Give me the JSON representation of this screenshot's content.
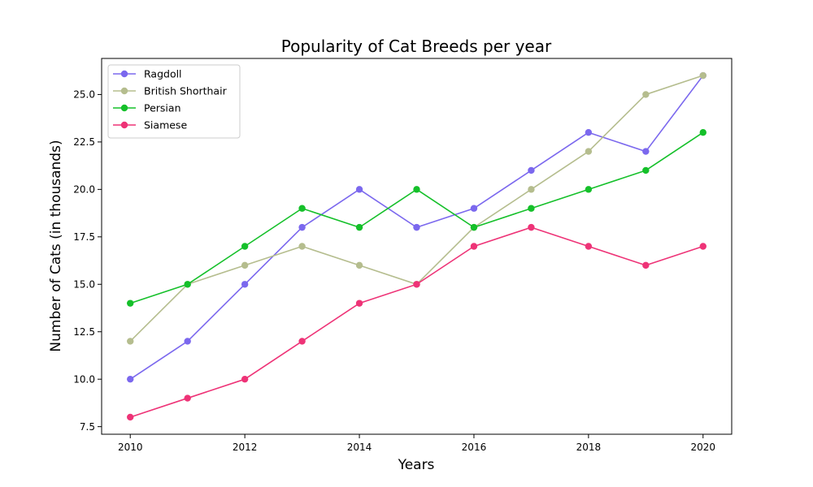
{
  "chart_data": {
    "type": "line",
    "title": "Popularity of Cat Breeds per year",
    "xlabel": "Years",
    "ylabel": "Number of Cats (in thousands)",
    "x": [
      2010,
      2011,
      2012,
      2013,
      2014,
      2015,
      2016,
      2017,
      2018,
      2019,
      2020
    ],
    "xticks": [
      "2010",
      "2012",
      "2014",
      "2016",
      "2018",
      "2020"
    ],
    "yticks": [
      "7.5",
      "10.0",
      "12.5",
      "15.0",
      "17.5",
      "20.0",
      "22.5",
      "25.0"
    ],
    "xlim": [
      2009.5,
      2020.5
    ],
    "ylim": [
      7.1,
      26.9
    ],
    "grid": false,
    "legend_position": "upper-left",
    "series": [
      {
        "name": "Ragdoll",
        "color": "#7b68ee",
        "values": [
          10,
          12,
          15,
          18,
          20,
          18,
          19,
          21,
          23,
          22,
          26
        ]
      },
      {
        "name": "British Shorthair",
        "color": "#b5bd8e",
        "values": [
          12,
          15,
          16,
          17,
          16,
          15,
          18,
          20,
          22,
          25,
          26
        ]
      },
      {
        "name": "Persian",
        "color": "#15c02a",
        "values": [
          14,
          15,
          17,
          19,
          18,
          20,
          18,
          19,
          20,
          21,
          23
        ]
      },
      {
        "name": "Siamese",
        "color": "#ee3377",
        "values": [
          8,
          9,
          10,
          12,
          14,
          15,
          17,
          18,
          17,
          16,
          17
        ]
      }
    ]
  }
}
